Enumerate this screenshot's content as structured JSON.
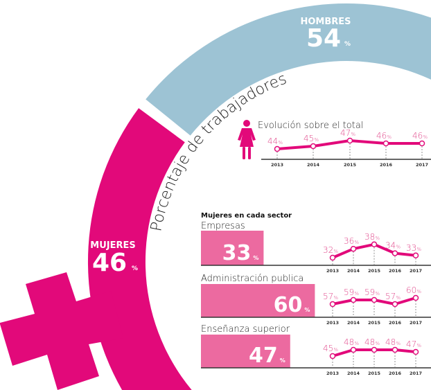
{
  "colors": {
    "magenta": "#e2097a",
    "pink_bar": "#ec6aa0",
    "blue": "#9dc3d4",
    "label_pink": "#e0468a"
  },
  "hombres": {
    "label": "HOMBRES",
    "value": "54",
    "unit": "%"
  },
  "mujeres": {
    "label": "MUJERES",
    "value": "46",
    "unit": "%"
  },
  "arc_title": "Porcentaje de trabajadores",
  "icons": {
    "woman": "woman-icon"
  },
  "sector_heading": "Mujeres en cada sector",
  "chart_data": [
    {
      "type": "line",
      "title": "Evolución sobre el total",
      "categories": [
        "2013",
        "2014",
        "2015",
        "2016",
        "2017"
      ],
      "values": [
        44,
        45,
        47,
        46,
        46
      ],
      "unit": "%"
    },
    {
      "type": "line",
      "title": "Empresas",
      "total": 33,
      "categories": [
        "2013",
        "2014",
        "2015",
        "2016",
        "2017"
      ],
      "values": [
        32,
        36,
        38,
        34,
        33
      ],
      "unit": "%"
    },
    {
      "type": "line",
      "title": "Administración publica",
      "total": 60,
      "categories": [
        "2013",
        "2014",
        "2015",
        "2016",
        "2017"
      ],
      "values": [
        57,
        59,
        59,
        57,
        60
      ],
      "unit": "%"
    },
    {
      "type": "line",
      "title": "Enseñanza superior",
      "total": 47,
      "categories": [
        "2013",
        "2014",
        "2015",
        "2016",
        "2017"
      ],
      "values": [
        45,
        48,
        48,
        48,
        47
      ],
      "unit": "%"
    }
  ]
}
